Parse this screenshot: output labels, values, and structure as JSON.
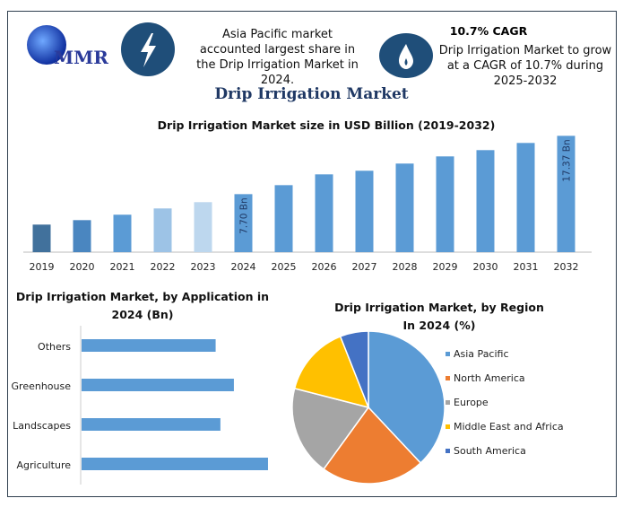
{
  "header": {
    "logo_text": "MMR",
    "stat1": "Asia Pacific market accounted largest share in the Drip Irrigation Market in 2024.",
    "stat2_title": "10.7% CAGR",
    "stat2": "Drip Irrigation Market to grow at a CAGR of 10.7% during 2025-2032",
    "title": "Drip Irrigation Market",
    "icons": [
      "lightning-icon",
      "flame-icon"
    ]
  },
  "chart_data": [
    {
      "type": "bar",
      "title": "Drip Irrigation Market size in USD Billion (2019-2032)",
      "categories": [
        "2019",
        "2020",
        "2021",
        "2022",
        "2023",
        "2024",
        "2025",
        "2026",
        "2027",
        "2028",
        "2029",
        "2030",
        "2031",
        "2032"
      ],
      "values": [
        2.65,
        3.39,
        4.29,
        5.33,
        6.37,
        7.7,
        9.19,
        10.98,
        11.58,
        12.77,
        13.96,
        15.0,
        16.19,
        17.37
      ],
      "colors": [
        "#41719c",
        "#4a86c0",
        "#5b9bd5",
        "#9dc3e6",
        "#bdd7ee",
        "#5b9bd5",
        "#5b9bd5",
        "#5b9bd5",
        "#5b9bd5",
        "#5b9bd5",
        "#5b9bd5",
        "#5b9bd5",
        "#5b9bd5",
        "#5b9bd5"
      ],
      "data_labels": {
        "2024": "7.70 Bn",
        "2032": "17.37 Bn"
      },
      "grid": false
    },
    {
      "type": "bar",
      "orientation": "horizontal",
      "title": "Drip Irrigation Market, by Application in 2024 (Bn)",
      "categories": [
        "Others",
        "Greenhouse",
        "Landscapes",
        "Agriculture"
      ],
      "values": [
        1.69,
        1.92,
        1.75,
        2.35
      ],
      "color": "#5b9bd5",
      "grid": false
    },
    {
      "type": "pie",
      "title": "Drip Irrigation Market, by Region In 2024 (%)",
      "labels": [
        "Asia Pacific",
        "North America",
        "Europe",
        "Middle East and Africa",
        "South America"
      ],
      "values": [
        38,
        22,
        19,
        15,
        6
      ],
      "colors": [
        "#5b9bd5",
        "#ed7d31",
        "#a5a5a5",
        "#ffc000",
        "#4472c4"
      ],
      "legend": "right"
    }
  ]
}
